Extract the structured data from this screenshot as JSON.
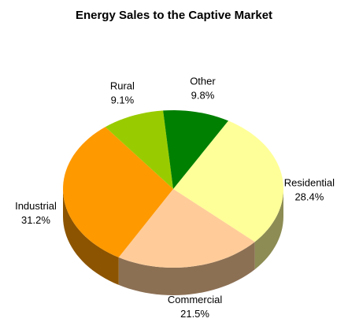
{
  "chart_data": {
    "type": "pie3d",
    "title": "Energy Sales to the Captive Market",
    "categories": [
      "Residential",
      "Commercial",
      "Industrial",
      "Rural",
      "Other"
    ],
    "values": [
      28.4,
      21.5,
      31.2,
      9.1,
      9.8
    ],
    "value_labels": [
      "28.4%",
      "21.5%",
      "31.2%",
      "9.1%",
      "9.8%"
    ],
    "colors": [
      "#ffff99",
      "#ffcc99",
      "#ff9900",
      "#99cc00",
      "#008000"
    ]
  }
}
